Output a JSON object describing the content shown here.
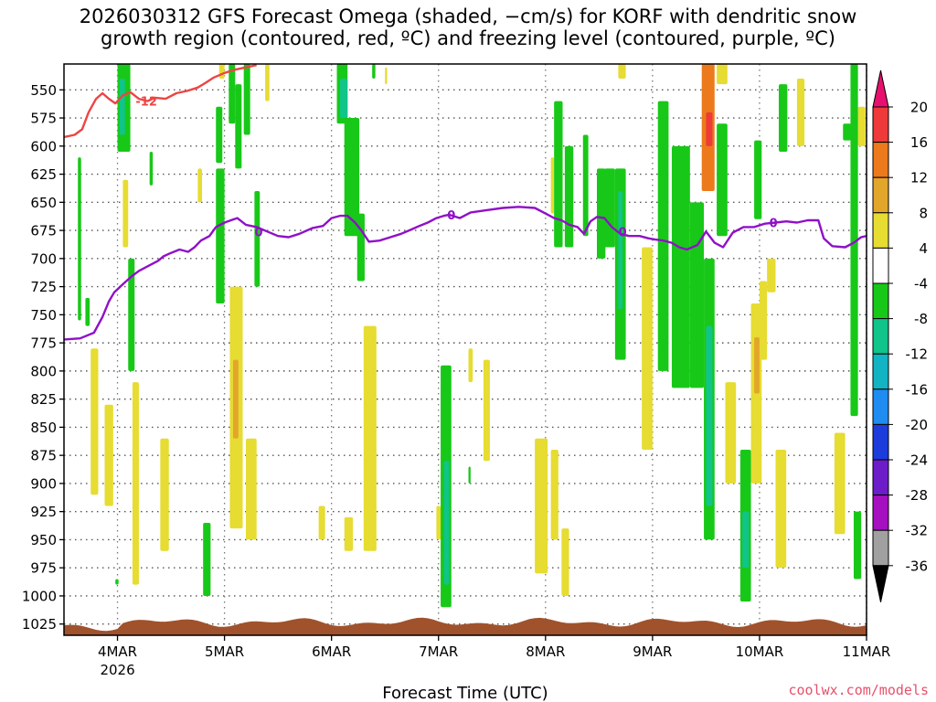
{
  "title_line1": "2026030312 GFS Forecast Omega (shaded, −cm/s) for KORF with dendritic snow",
  "title_line2": "growth region (contoured, red, ºC) and freezing level (contoured, purple, ºC)",
  "credit": "coolwx.com/models",
  "chart_data": {
    "type": "heatmap",
    "title": "2026030312 GFS Forecast Omega (shaded, −cm/s) for KORF with dendritic snow growth region (contoured, red, ºC) and freezing level (contoured, purple, ºC)",
    "xlabel": "Forecast Time (UTC)",
    "ylabel": "",
    "x_ticks": [
      "4MAR",
      "5MAR",
      "6MAR",
      "7MAR",
      "8MAR",
      "9MAR",
      "10MAR",
      "11MAR"
    ],
    "x_tick_year": "2026",
    "xlim_days": [
      3.5,
      11.0
    ],
    "y_ticks": [
      550,
      575,
      600,
      625,
      650,
      675,
      700,
      725,
      750,
      775,
      800,
      825,
      850,
      875,
      900,
      925,
      950,
      975,
      1000,
      1025
    ],
    "ylim": [
      1035,
      527
    ],
    "grid": true,
    "colorbar": {
      "tick_labels": [
        20,
        16,
        12,
        8,
        4,
        -4,
        -8,
        -12,
        -16,
        -20,
        -24,
        -28,
        -32,
        -36
      ],
      "bins": [
        {
          "lo": 20,
          "hi": null,
          "color": "#e8106e"
        },
        {
          "lo": 16,
          "hi": 20,
          "color": "#ee3a3a"
        },
        {
          "lo": 12,
          "hi": 16,
          "color": "#ec7a1c"
        },
        {
          "lo": 8,
          "hi": 12,
          "color": "#e2a62a"
        },
        {
          "lo": 4,
          "hi": 8,
          "color": "#e6dc32"
        },
        {
          "lo": -4,
          "hi": 4,
          "color": "#ffffff"
        },
        {
          "lo": -8,
          "hi": -4,
          "color": "#18c818"
        },
        {
          "lo": -12,
          "hi": -8,
          "color": "#10c48a"
        },
        {
          "lo": -16,
          "hi": -12,
          "color": "#12b4c4"
        },
        {
          "lo": -20,
          "hi": -16,
          "color": "#1e8cf0"
        },
        {
          "lo": -24,
          "hi": -20,
          "color": "#1c3cdc"
        },
        {
          "lo": -28,
          "hi": -24,
          "color": "#6c1cc8"
        },
        {
          "lo": -32,
          "hi": -28,
          "color": "#a410c0"
        },
        {
          "lo": -36,
          "hi": -32,
          "color": "#a0a0a0"
        },
        {
          "lo": null,
          "hi": -36,
          "color": "#000000"
        }
      ]
    },
    "freezing_level": {
      "label": "0",
      "color": "#9010c8",
      "points": [
        [
          3.5,
          772
        ],
        [
          3.65,
          771
        ],
        [
          3.78,
          766
        ],
        [
          3.86,
          752
        ],
        [
          3.92,
          738
        ],
        [
          3.97,
          730
        ],
        [
          4.06,
          722
        ],
        [
          4.13,
          716
        ],
        [
          4.2,
          711
        ],
        [
          4.3,
          706
        ],
        [
          4.38,
          702
        ],
        [
          4.43,
          698
        ],
        [
          4.5,
          695
        ],
        [
          4.58,
          692
        ],
        [
          4.66,
          694
        ],
        [
          4.72,
          690
        ],
        [
          4.78,
          684
        ],
        [
          4.86,
          680
        ],
        [
          4.92,
          672
        ],
        [
          5.0,
          668
        ],
        [
          5.06,
          666
        ],
        [
          5.12,
          664
        ],
        [
          5.2,
          670
        ],
        [
          5.3,
          672
        ],
        [
          5.4,
          676
        ],
        [
          5.5,
          680
        ],
        [
          5.6,
          681
        ],
        [
          5.7,
          678
        ],
        [
          5.82,
          673
        ],
        [
          5.92,
          671
        ],
        [
          6.0,
          664
        ],
        [
          6.08,
          662
        ],
        [
          6.15,
          662
        ],
        [
          6.22,
          668
        ],
        [
          6.28,
          675
        ],
        [
          6.35,
          685
        ],
        [
          6.45,
          684
        ],
        [
          6.55,
          681
        ],
        [
          6.65,
          678
        ],
        [
          6.75,
          674
        ],
        [
          6.82,
          671
        ],
        [
          6.9,
          668
        ],
        [
          6.98,
          664
        ],
        [
          7.05,
          662
        ],
        [
          7.1,
          661
        ],
        [
          7.2,
          664
        ],
        [
          7.3,
          659
        ],
        [
          7.45,
          657
        ],
        [
          7.6,
          655
        ],
        [
          7.75,
          654
        ],
        [
          7.9,
          655
        ],
        [
          8.0,
          660
        ],
        [
          8.08,
          664
        ],
        [
          8.15,
          666
        ],
        [
          8.22,
          670
        ],
        [
          8.3,
          672
        ],
        [
          8.36,
          678
        ],
        [
          8.42,
          667
        ],
        [
          8.48,
          663
        ],
        [
          8.55,
          664
        ],
        [
          8.62,
          672
        ],
        [
          8.7,
          678
        ],
        [
          8.78,
          680
        ],
        [
          8.88,
          680
        ],
        [
          8.96,
          682
        ],
        [
          9.02,
          683
        ],
        [
          9.1,
          684
        ],
        [
          9.18,
          686
        ],
        [
          9.25,
          690
        ],
        [
          9.32,
          692
        ],
        [
          9.42,
          688
        ],
        [
          9.5,
          676
        ],
        [
          9.58,
          686
        ],
        [
          9.66,
          690
        ],
        [
          9.75,
          677
        ],
        [
          9.85,
          672
        ],
        [
          9.95,
          672
        ],
        [
          10.05,
          669
        ],
        [
          10.15,
          668
        ],
        [
          10.25,
          667
        ],
        [
          10.35,
          668
        ],
        [
          10.45,
          666
        ],
        [
          10.55,
          666
        ],
        [
          10.6,
          682
        ],
        [
          10.68,
          689
        ],
        [
          10.8,
          690
        ],
        [
          10.88,
          686
        ],
        [
          10.95,
          681
        ],
        [
          11.0,
          680
        ]
      ]
    },
    "dendritic_contour": {
      "label": "-12",
      "color": "#ee4444",
      "points": [
        [
          3.5,
          592
        ],
        [
          3.6,
          590
        ],
        [
          3.67,
          585
        ],
        [
          3.73,
          570
        ],
        [
          3.8,
          558
        ],
        [
          3.86,
          553
        ],
        [
          3.92,
          558
        ],
        [
          3.98,
          562
        ],
        [
          4.05,
          555
        ],
        [
          4.12,
          552
        ],
        [
          4.2,
          558
        ],
        [
          4.28,
          560
        ],
        [
          4.35,
          557
        ],
        [
          4.45,
          558
        ],
        [
          4.55,
          553
        ],
        [
          4.65,
          551
        ],
        [
          4.75,
          548
        ],
        [
          4.82,
          544
        ],
        [
          4.9,
          539
        ],
        [
          5.0,
          535
        ],
        [
          5.1,
          532
        ],
        [
          5.2,
          530
        ],
        [
          5.3,
          528
        ]
      ]
    },
    "omega_cells": [
      {
        "x0": 3.63,
        "x1": 3.66,
        "y0": 610,
        "y1": 755,
        "value": -6
      },
      {
        "x0": 3.7,
        "x1": 3.74,
        "y0": 735,
        "y1": 760,
        "value": -6
      },
      {
        "x0": 4.0,
        "x1": 4.12,
        "y0": 527,
        "y1": 605,
        "value": -6
      },
      {
        "x0": 4.02,
        "x1": 4.07,
        "y0": 540,
        "y1": 590,
        "value": -10
      },
      {
        "x0": 4.1,
        "x1": 4.16,
        "y0": 700,
        "y1": 800,
        "value": -6
      },
      {
        "x0": 4.3,
        "x1": 4.33,
        "y0": 605,
        "y1": 635,
        "value": -6
      },
      {
        "x0": 4.8,
        "x1": 4.87,
        "y0": 935,
        "y1": 1000,
        "value": -6
      },
      {
        "x0": 4.92,
        "x1": 5.0,
        "y0": 620,
        "y1": 740,
        "value": -6
      },
      {
        "x0": 4.92,
        "x1": 4.98,
        "y0": 565,
        "y1": 615,
        "value": -6
      },
      {
        "x0": 5.04,
        "x1": 5.1,
        "y0": 527,
        "y1": 580,
        "value": -6
      },
      {
        "x0": 5.1,
        "x1": 5.16,
        "y0": 545,
        "y1": 620,
        "value": -6
      },
      {
        "x0": 5.18,
        "x1": 5.24,
        "y0": 527,
        "y1": 590,
        "value": -6
      },
      {
        "x0": 5.28,
        "x1": 5.33,
        "y0": 640,
        "y1": 725,
        "value": -6
      },
      {
        "x0": 6.05,
        "x1": 6.15,
        "y0": 527,
        "y1": 580,
        "value": -6
      },
      {
        "x0": 6.08,
        "x1": 6.15,
        "y0": 540,
        "y1": 575,
        "value": -10
      },
      {
        "x0": 6.12,
        "x1": 6.26,
        "y0": 575,
        "y1": 680,
        "value": -6
      },
      {
        "x0": 6.24,
        "x1": 6.31,
        "y0": 660,
        "y1": 720,
        "value": -6
      },
      {
        "x0": 6.38,
        "x1": 6.41,
        "y0": 527,
        "y1": 540,
        "value": -6
      },
      {
        "x0": 7.02,
        "x1": 7.12,
        "y0": 795,
        "y1": 1010,
        "value": -6
      },
      {
        "x0": 7.05,
        "x1": 7.1,
        "y0": 880,
        "y1": 990,
        "value": -10
      },
      {
        "x0": 7.28,
        "x1": 7.3,
        "y0": 885,
        "y1": 900,
        "value": -6
      },
      {
        "x0": 8.08,
        "x1": 8.16,
        "y0": 560,
        "y1": 690,
        "value": -6
      },
      {
        "x0": 8.18,
        "x1": 8.26,
        "y0": 600,
        "y1": 690,
        "value": -6
      },
      {
        "x0": 8.35,
        "x1": 8.4,
        "y0": 590,
        "y1": 680,
        "value": -6
      },
      {
        "x0": 8.48,
        "x1": 8.56,
        "y0": 620,
        "y1": 700,
        "value": -6
      },
      {
        "x0": 8.55,
        "x1": 8.65,
        "y0": 620,
        "y1": 690,
        "value": -6
      },
      {
        "x0": 8.65,
        "x1": 8.75,
        "y0": 620,
        "y1": 790,
        "value": -6
      },
      {
        "x0": 8.68,
        "x1": 8.72,
        "y0": 640,
        "y1": 745,
        "value": -10
      },
      {
        "x0": 9.05,
        "x1": 9.15,
        "y0": 560,
        "y1": 800,
        "value": -6
      },
      {
        "x0": 9.18,
        "x1": 9.35,
        "y0": 600,
        "y1": 815,
        "value": -6
      },
      {
        "x0": 9.35,
        "x1": 9.48,
        "y0": 650,
        "y1": 815,
        "value": -6
      },
      {
        "x0": 9.48,
        "x1": 9.58,
        "y0": 700,
        "y1": 950,
        "value": -6
      },
      {
        "x0": 9.5,
        "x1": 9.56,
        "y0": 760,
        "y1": 920,
        "value": -10
      },
      {
        "x0": 9.6,
        "x1": 9.7,
        "y0": 580,
        "y1": 680,
        "value": -6
      },
      {
        "x0": 9.82,
        "x1": 9.92,
        "y0": 870,
        "y1": 1005,
        "value": -6
      },
      {
        "x0": 9.84,
        "x1": 9.9,
        "y0": 925,
        "y1": 975,
        "value": -10
      },
      {
        "x0": 9.95,
        "x1": 10.02,
        "y0": 595,
        "y1": 665,
        "value": -6
      },
      {
        "x0": 10.18,
        "x1": 10.26,
        "y0": 545,
        "y1": 605,
        "value": -6
      },
      {
        "x0": 10.78,
        "x1": 10.86,
        "y0": 580,
        "y1": 595,
        "value": -6
      },
      {
        "x0": 10.85,
        "x1": 10.92,
        "y0": 527,
        "y1": 840,
        "value": -6
      },
      {
        "x0": 10.88,
        "x1": 10.95,
        "y0": 925,
        "y1": 985,
        "value": -6
      },
      {
        "x0": 3.98,
        "x1": 4.01,
        "y0": 985,
        "y1": 990,
        "value": -6
      }
    ],
    "omega_pos_cells": [
      {
        "x0": 3.75,
        "x1": 3.82,
        "y0": 780,
        "y1": 910,
        "value": 6
      },
      {
        "x0": 3.88,
        "x1": 3.96,
        "y0": 830,
        "y1": 920,
        "value": 6
      },
      {
        "x0": 4.05,
        "x1": 4.1,
        "y0": 630,
        "y1": 690,
        "value": 6
      },
      {
        "x0": 4.14,
        "x1": 4.2,
        "y0": 810,
        "y1": 990,
        "value": 6
      },
      {
        "x0": 4.4,
        "x1": 4.48,
        "y0": 860,
        "y1": 960,
        "value": 6
      },
      {
        "x0": 4.95,
        "x1": 5.0,
        "y0": 480,
        "y1": 540,
        "value": 6
      },
      {
        "x0": 4.75,
        "x1": 4.79,
        "y0": 620,
        "y1": 650,
        "value": 6
      },
      {
        "x0": 5.05,
        "x1": 5.17,
        "y0": 725,
        "y1": 940,
        "value": 6
      },
      {
        "x0": 5.08,
        "x1": 5.13,
        "y0": 790,
        "y1": 860,
        "value": 10
      },
      {
        "x0": 5.2,
        "x1": 5.3,
        "y0": 860,
        "y1": 950,
        "value": 6
      },
      {
        "x0": 5.38,
        "x1": 5.42,
        "y0": 527,
        "y1": 560,
        "value": 6
      },
      {
        "x0": 5.88,
        "x1": 5.94,
        "y0": 920,
        "y1": 950,
        "value": 6
      },
      {
        "x0": 6.12,
        "x1": 6.2,
        "y0": 930,
        "y1": 960,
        "value": 6
      },
      {
        "x0": 6.3,
        "x1": 6.42,
        "y0": 760,
        "y1": 960,
        "value": 6
      },
      {
        "x0": 6.5,
        "x1": 6.52,
        "y0": 530,
        "y1": 545,
        "value": 6
      },
      {
        "x0": 6.98,
        "x1": 7.02,
        "y0": 920,
        "y1": 950,
        "value": 6
      },
      {
        "x0": 7.28,
        "x1": 7.32,
        "y0": 780,
        "y1": 810,
        "value": 6
      },
      {
        "x0": 7.42,
        "x1": 7.48,
        "y0": 790,
        "y1": 880,
        "value": 6
      },
      {
        "x0": 7.9,
        "x1": 8.02,
        "y0": 860,
        "y1": 980,
        "value": 6
      },
      {
        "x0": 8.05,
        "x1": 8.12,
        "y0": 870,
        "y1": 950,
        "value": 6
      },
      {
        "x0": 8.15,
        "x1": 8.22,
        "y0": 940,
        "y1": 1000,
        "value": 6
      },
      {
        "x0": 8.05,
        "x1": 8.08,
        "y0": 610,
        "y1": 660,
        "value": 6
      },
      {
        "x0": 8.68,
        "x1": 8.75,
        "y0": 527,
        "y1": 540,
        "value": 6
      },
      {
        "x0": 8.9,
        "x1": 9.0,
        "y0": 690,
        "y1": 870,
        "value": 6
      },
      {
        "x0": 9.46,
        "x1": 9.58,
        "y0": 527,
        "y1": 640,
        "value": 12
      },
      {
        "x0": 9.5,
        "x1": 9.56,
        "y0": 570,
        "y1": 600,
        "value": 18
      },
      {
        "x0": 9.6,
        "x1": 9.7,
        "y0": 527,
        "y1": 545,
        "value": 6
      },
      {
        "x0": 9.68,
        "x1": 9.78,
        "y0": 810,
        "y1": 900,
        "value": 6
      },
      {
        "x0": 9.85,
        "x1": 9.92,
        "y0": 960,
        "y1": 990,
        "value": 6
      },
      {
        "x0": 9.92,
        "x1": 10.02,
        "y0": 740,
        "y1": 900,
        "value": 6
      },
      {
        "x0": 9.95,
        "x1": 10.0,
        "y0": 770,
        "y1": 820,
        "value": 10
      },
      {
        "x0": 10.0,
        "x1": 10.07,
        "y0": 720,
        "y1": 790,
        "value": 6
      },
      {
        "x0": 10.07,
        "x1": 10.15,
        "y0": 700,
        "y1": 730,
        "value": 6
      },
      {
        "x0": 10.15,
        "x1": 10.25,
        "y0": 870,
        "y1": 975,
        "value": 6
      },
      {
        "x0": 10.35,
        "x1": 10.42,
        "y0": 540,
        "y1": 600,
        "value": 6
      },
      {
        "x0": 10.7,
        "x1": 10.8,
        "y0": 855,
        "y1": 945,
        "value": 6
      },
      {
        "x0": 10.92,
        "x1": 10.99,
        "y0": 565,
        "y1": 600,
        "value": 6
      }
    ]
  }
}
